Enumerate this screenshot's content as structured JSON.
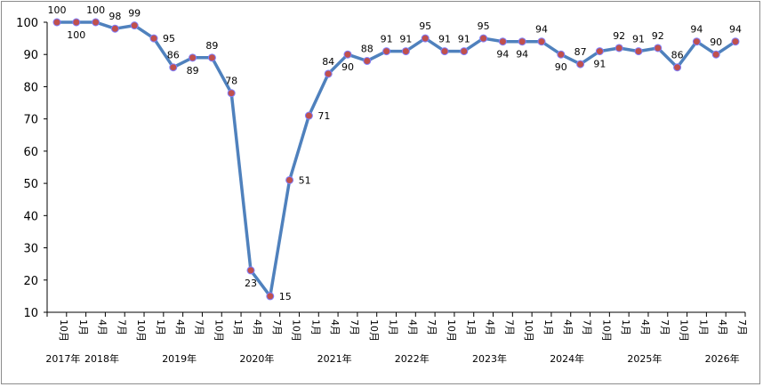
{
  "chart_data": {
    "type": "line",
    "title": "",
    "xlabel": "",
    "ylabel": "",
    "ylim": [
      10,
      100
    ],
    "yticks": [
      10,
      20,
      30,
      40,
      50,
      60,
      70,
      80,
      90,
      100
    ],
    "grid": false,
    "legend": "none",
    "colors": {
      "line": "#4F81BD",
      "marker_fill": "#C0504D",
      "marker_edge": "#7F7FFF"
    },
    "categories": [
      "10月",
      "1月",
      "4月",
      "7月",
      "10月",
      "1月",
      "4月",
      "7月",
      "10月",
      "1月",
      "4月",
      "7月",
      "10月",
      "1月",
      "4月",
      "7月",
      "10月",
      "1月",
      "4月",
      "7月",
      "10月",
      "1月",
      "4月",
      "7月",
      "10月",
      "1月",
      "4月",
      "7月",
      "10月",
      "1月",
      "4月",
      "7月",
      "10月",
      "1月",
      "4月",
      "7月"
    ],
    "year_labels": [
      {
        "label": "2017年",
        "index": 0
      },
      {
        "label": "2018年",
        "index": 2
      },
      {
        "label": "2019年",
        "index": 6
      },
      {
        "label": "2020年",
        "index": 10
      },
      {
        "label": "2021年",
        "index": 14
      },
      {
        "label": "2022年",
        "index": 18
      },
      {
        "label": "2023年",
        "index": 22
      },
      {
        "label": "2024年",
        "index": 26
      },
      {
        "label": "2025年",
        "index": 30
      },
      {
        "label": "2026年",
        "index": 34
      }
    ],
    "series": [
      {
        "values": [
          100,
          100,
          100,
          98,
          99,
          95,
          86,
          89,
          89,
          78,
          23,
          15,
          51,
          71,
          84,
          90,
          88,
          91,
          91,
          95,
          91,
          91,
          95,
          94,
          94,
          94,
          90,
          87,
          91,
          92,
          91,
          92,
          86,
          94,
          90,
          94
        ],
        "label_pos": [
          "above",
          "below",
          "above",
          "above",
          "above",
          "right",
          "above",
          "below",
          "above",
          "above",
          "below",
          "right",
          "right",
          "right",
          "above",
          "below",
          "above",
          "above",
          "above",
          "above",
          "above",
          "above",
          "above",
          "below",
          "below",
          "above",
          "below",
          "above",
          "below",
          "above",
          "above",
          "above",
          "above",
          "above",
          "above",
          "above"
        ]
      }
    ]
  }
}
